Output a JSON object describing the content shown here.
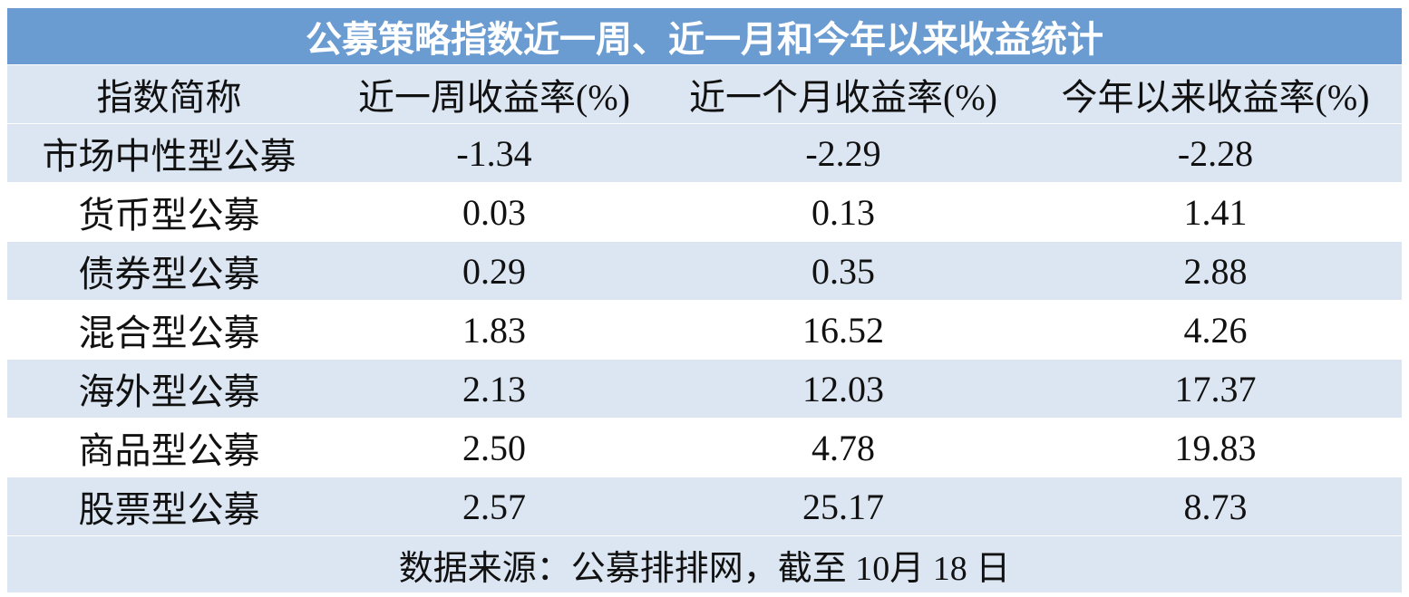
{
  "title": "公募策略指数近一周、近一月和今年以来收益统计",
  "table": {
    "header": [
      "指数简称",
      "近一周收益率(%)",
      "近一个月收益率(%)",
      "今年以来收益率(%)"
    ],
    "rows": [
      [
        "市场中性型公募",
        "-1.34",
        "-2.29",
        "-2.28"
      ],
      [
        "货币型公募",
        "0.03",
        "0.13",
        "1.41"
      ],
      [
        "债券型公募",
        "0.29",
        "0.35",
        "2.88"
      ],
      [
        "混合型公募",
        "1.83",
        "16.52",
        "4.26"
      ],
      [
        "海外型公募",
        "2.13",
        "12.03",
        "17.37"
      ],
      [
        "商品型公募",
        "2.50",
        "4.78",
        "19.83"
      ],
      [
        "股票型公募",
        "2.57",
        "25.17",
        "8.73"
      ]
    ]
  },
  "footer": "数据来源：公募排排网，截至 10月 18 日"
}
